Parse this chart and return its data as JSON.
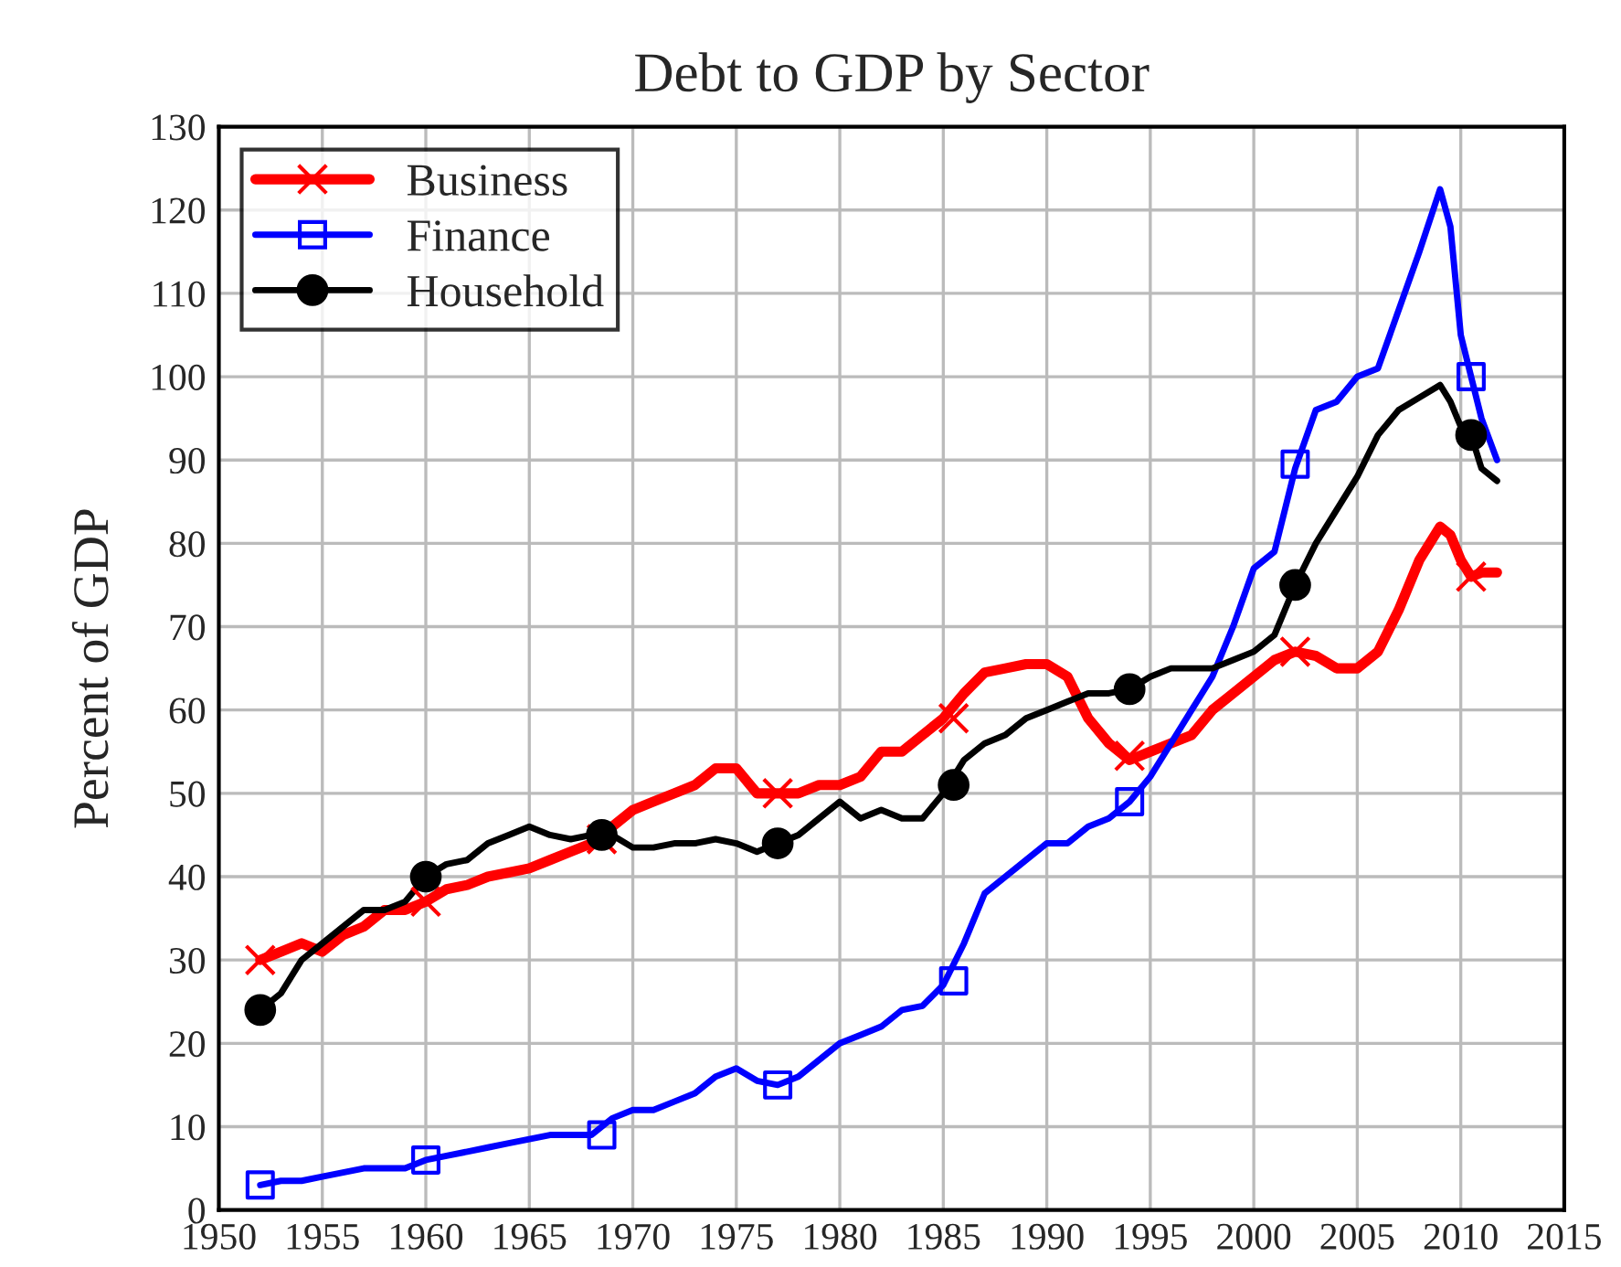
{
  "chart_data": {
    "type": "line",
    "title": "Debt to GDP by Sector",
    "ylabel": "Percent of GDP",
    "xlim": [
      1950,
      2015
    ],
    "xticks": [
      1950,
      1955,
      1960,
      1965,
      1970,
      1975,
      1980,
      1985,
      1990,
      1995,
      2000,
      2005,
      2010,
      2015
    ],
    "ylim": [
      0,
      130
    ],
    "yticks": [
      0,
      10,
      20,
      30,
      40,
      50,
      60,
      70,
      80,
      90,
      100,
      110,
      120,
      130
    ],
    "grid": true,
    "legend": "top left",
    "line_style": "solid",
    "series": [
      {
        "name": "Business",
        "color": "#ff0000",
        "x": [
          1952,
          1953,
          1954,
          1955,
          1956,
          1957,
          1958,
          1959,
          1960,
          1961,
          1962,
          1963,
          1964,
          1965,
          1966,
          1967,
          1968,
          1969,
          1970,
          1971,
          1972,
          1973,
          1974,
          1975,
          1976,
          1977,
          1978,
          1979,
          1980,
          1981,
          1982,
          1983,
          1984,
          1985,
          1986,
          1987,
          1988,
          1989,
          1990,
          1991,
          1992,
          1993,
          1994,
          1995,
          1996,
          1997,
          1998,
          1999,
          2000,
          2001,
          2002,
          2003,
          2004,
          2005,
          2006,
          2007,
          2008,
          2009,
          2009.5,
          2010,
          2010.5,
          2011,
          2011.75
        ],
        "values": [
          30,
          31,
          32,
          31,
          33,
          34,
          36,
          36,
          37,
          38.5,
          39,
          40,
          40.5,
          41,
          42,
          43,
          44,
          46,
          48,
          49,
          50,
          51,
          53,
          53,
          50,
          50,
          50,
          51,
          51,
          52,
          55,
          55,
          57,
          59,
          62,
          64.5,
          65,
          65.5,
          65.5,
          64,
          59,
          56,
          54,
          55,
          56,
          57,
          60,
          62,
          64,
          66,
          67,
          66.5,
          65,
          65,
          67,
          72,
          78,
          82,
          81,
          78,
          76,
          76.5,
          76.5
        ]
      },
      {
        "type": "scatter",
        "color": "#ff0000",
        "marker": "cross",
        "x": [
          1952,
          1960,
          1968.5,
          1977,
          1985.5,
          1994,
          2002,
          2010.5
        ],
        "values": [
          30,
          37,
          44.5,
          50,
          59,
          54.5,
          67,
          76
        ]
      },
      {
        "name": "Finance",
        "color": "#0000ff",
        "x": [
          1952,
          1953,
          1954,
          1955,
          1956,
          1957,
          1958,
          1959,
          1960,
          1961,
          1962,
          1963,
          1964,
          1965,
          1966,
          1967,
          1968,
          1969,
          1970,
          1971,
          1972,
          1973,
          1974,
          1975,
          1976,
          1977,
          1978,
          1979,
          1980,
          1981,
          1982,
          1983,
          1984,
          1985,
          1986,
          1987,
          1988,
          1989,
          1990,
          1991,
          1992,
          1993,
          1994,
          1995,
          1996,
          1997,
          1998,
          1999,
          2000,
          2001,
          2002,
          2003,
          2004,
          2005,
          2006,
          2007,
          2008,
          2009,
          2009.5,
          2010,
          2010.5,
          2011,
          2011.75
        ],
        "values": [
          3,
          3.5,
          3.5,
          4,
          4.5,
          5,
          5,
          5,
          6,
          6.5,
          7,
          7.5,
          8,
          8.5,
          9,
          9,
          9,
          11,
          12,
          12,
          13,
          14,
          16,
          17,
          15.5,
          15,
          16,
          18,
          20,
          21,
          22,
          24,
          24.5,
          27,
          32,
          38,
          40,
          42,
          44,
          44,
          46,
          47,
          49,
          52,
          56,
          60,
          64,
          70,
          77,
          79,
          89,
          96,
          97,
          100,
          101,
          108,
          115,
          122.5,
          118,
          105,
          100,
          95,
          90
        ]
      },
      {
        "type": "scatter",
        "color": "#0000ff",
        "marker": "square",
        "x": [
          1952,
          1960,
          1968.5,
          1977,
          1985.5,
          1994,
          2002,
          2010.5
        ],
        "values": [
          3,
          6,
          9,
          15,
          27.5,
          49,
          89.5,
          100
        ]
      },
      {
        "name": "Household",
        "color": "#000000",
        "x": [
          1952,
          1953,
          1954,
          1955,
          1956,
          1957,
          1958,
          1959,
          1960,
          1961,
          1962,
          1963,
          1964,
          1965,
          1966,
          1967,
          1968,
          1969,
          1970,
          1971,
          1972,
          1973,
          1974,
          1975,
          1976,
          1977,
          1978,
          1979,
          1980,
          1981,
          1982,
          1983,
          1984,
          1985,
          1986,
          1987,
          1988,
          1989,
          1990,
          1991,
          1992,
          1993,
          1994,
          1995,
          1996,
          1997,
          1998,
          1999,
          2000,
          2001,
          2002,
          2003,
          2004,
          2005,
          2006,
          2007,
          2008,
          2009,
          2009.5,
          2010,
          2010.5,
          2011,
          2011.75
        ],
        "values": [
          24,
          26,
          30,
          32,
          34,
          36,
          36,
          37,
          40,
          41.5,
          42,
          44,
          45,
          46,
          45,
          44.5,
          45,
          45,
          43.5,
          43.5,
          44,
          44,
          44.5,
          44,
          43,
          44,
          45,
          47,
          49,
          47,
          48,
          47,
          47,
          50,
          54,
          56,
          57,
          59,
          60,
          61,
          62,
          62,
          62.5,
          64,
          65,
          65,
          65,
          66,
          67,
          69,
          75,
          80,
          84,
          88,
          93,
          96,
          97.5,
          99,
          97,
          94,
          93,
          89,
          87.5
        ]
      },
      {
        "type": "scatter",
        "color": "#000000",
        "marker": "circle",
        "x": [
          1952,
          1960,
          1968.5,
          1977,
          1985.5,
          1994,
          2002,
          2010.5
        ],
        "values": [
          24,
          40,
          45,
          44,
          51,
          62.5,
          75,
          93
        ]
      }
    ]
  }
}
